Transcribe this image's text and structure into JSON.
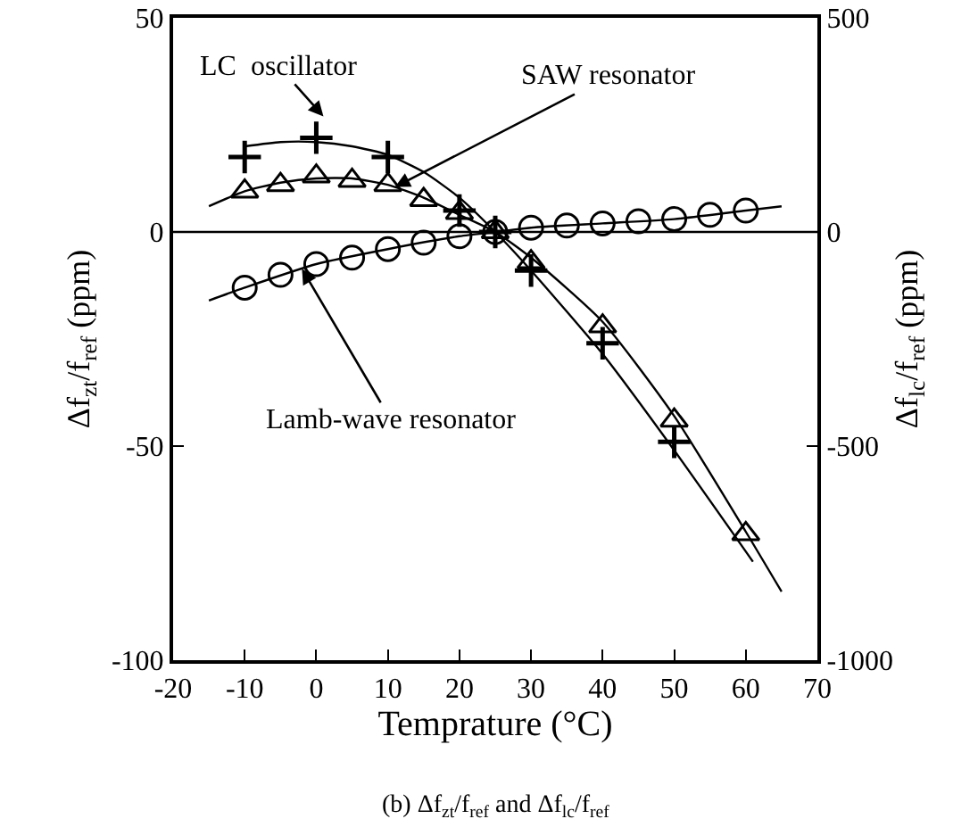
{
  "chart_data": {
    "type": "scatter",
    "xlabel": "Temprature (°C)",
    "ylabel": "Δf$_{zt}$/f$_{ref}$ (ppm)",
    "y2label": "Δf$_{lc}$/f$_{ref}$ (ppm)",
    "xlim": [
      -20,
      70
    ],
    "xticks": [
      -20,
      -10,
      0,
      10,
      20,
      30,
      40,
      50,
      60,
      70
    ],
    "ylim": [
      -100,
      50
    ],
    "yticks": [
      -100,
      -50,
      0,
      50
    ],
    "y2lim": [
      -1000,
      500
    ],
    "y2ticks": [
      -1000,
      -500,
      0,
      500
    ],
    "grid": false,
    "ref_lines": [
      {
        "axis": "y",
        "value": 0,
        "color": "#000000"
      }
    ],
    "series": [
      {
        "marker": "cross",
        "axis": "y2",
        "color": "#000000",
        "x": [
          -10,
          0,
          10,
          20,
          25,
          30,
          40,
          50
        ],
        "values": [
          175,
          220,
          175,
          50,
          0,
          -90,
          -260,
          -490
        ]
      },
      {
        "marker": "triangle",
        "color": "#000000",
        "x": [
          -10,
          -5,
          0,
          5,
          10,
          15,
          20,
          25,
          30,
          40,
          50,
          60
        ],
        "values": [
          9.5,
          11,
          13,
          12,
          11,
          7.5,
          4.5,
          0,
          -7,
          -22,
          -44,
          -70.5
        ]
      },
      {
        "marker": "circle",
        "color": "#000000",
        "x": [
          -10,
          -5,
          0,
          5,
          10,
          15,
          20,
          25,
          30,
          35,
          40,
          45,
          50,
          55,
          60
        ],
        "values": [
          -13,
          -10,
          -7.5,
          -6,
          -4,
          -2.5,
          -1,
          0,
          1,
          1.5,
          2,
          2.5,
          3,
          4,
          5
        ]
      },
      {
        "type": "line",
        "axis": "y2",
        "color": "#000000",
        "x": [
          -10,
          -5,
          0,
          5,
          10,
          15,
          20,
          25,
          30,
          40,
          50,
          61
        ],
        "values": [
          200,
          210,
          210,
          200,
          180,
          140,
          80,
          0,
          -90,
          -285,
          -510,
          -770
        ]
      },
      {
        "type": "line",
        "color": "#000000",
        "x": [
          -15,
          -10,
          -5,
          0,
          5,
          10,
          15,
          20,
          25,
          30,
          40,
          50,
          60,
          65
        ],
        "values": [
          6,
          9.5,
          11.5,
          12.5,
          12.5,
          11,
          8,
          4,
          0,
          -6,
          -21,
          -43,
          -70,
          -84
        ]
      },
      {
        "type": "line",
        "color": "#000000",
        "x": [
          -15,
          -10,
          0,
          10,
          20,
          25,
          30,
          40,
          50,
          60,
          65
        ],
        "values": [
          -16,
          -13,
          -7.5,
          -4,
          -1,
          0,
          1,
          2,
          3,
          5,
          6
        ]
      }
    ],
    "annotations": [
      {
        "text": "LC  oscillator",
        "x": 1,
        "y": 27
      },
      {
        "text": "SAW resonator",
        "x": 11,
        "y": 10.5
      },
      {
        "text": "Lamb-wave resonator",
        "x": -2,
        "y": -8.6
      },
      "(b) Δf$_{zt}$/f$_{ref}$ and Δf$_{lc}$/f$_{ref}$"
    ]
  }
}
